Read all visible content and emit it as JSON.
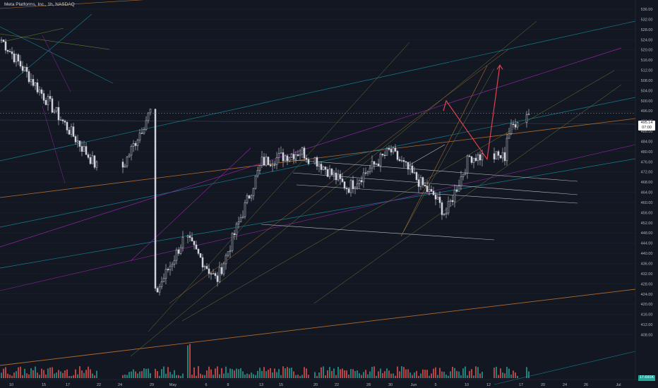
{
  "header": {
    "title": "Meta Platforms, Inc., 1h, NASDAQ"
  },
  "price_tag": {
    "price": "495.14",
    "countdown": "07:00"
  },
  "volume_tag": {
    "value": "17.691K"
  },
  "colors": {
    "background": "#131722",
    "grid": "#1f2433",
    "candle": "#d1d4dc",
    "vol_up": "#26a69a",
    "vol_down": "#ef5350",
    "forecast": "#e0424e",
    "teal": "#138a9a",
    "orange": "#c2732f",
    "purple": "#9c27b0",
    "olive": "#6b8b3a",
    "white_line": "#c9ccd4",
    "axis_text": "#b2b5be"
  },
  "chart_data": {
    "type": "candlestick",
    "title": "Meta Platforms, Inc., 1h, NASDAQ",
    "y_ticks": [
      "536.00",
      "532.00",
      "528.00",
      "524.00",
      "520.00",
      "516.00",
      "512.00",
      "508.00",
      "504.00",
      "500.00",
      "496.00",
      "492.00",
      "488.00",
      "484.00",
      "480.00",
      "476.00",
      "472.00",
      "468.00",
      "464.00",
      "460.00",
      "456.00",
      "452.00",
      "448.00",
      "444.00",
      "440.00",
      "436.00",
      "432.00",
      "428.00",
      "424.00",
      "420.00",
      "416.00",
      "412.00",
      "408.00"
    ],
    "x_ticks": [
      "10",
      "15",
      "17",
      "22",
      "24",
      "29",
      "May",
      "6",
      "8",
      "13",
      "15",
      "20",
      "22",
      "28",
      "30",
      "Jun",
      "5",
      "10",
      "12",
      "17",
      "20",
      "24",
      "26",
      "Jul"
    ],
    "ylim": [
      406,
      537
    ],
    "last_price": 495.14,
    "forecast_path": [
      500,
      477,
      514
    ],
    "price_segments": [
      {
        "start": 524,
        "end": 474,
        "n": 46
      },
      {
        "start": 474,
        "end": 496,
        "n": 14
      },
      {
        "start": 424,
        "end": 445,
        "n": 14
      },
      {
        "start": 445,
        "end": 430,
        "n": 14
      },
      {
        "start": 430,
        "end": 476,
        "n": 22
      },
      {
        "start": 476,
        "end": 480,
        "n": 18
      },
      {
        "start": 480,
        "end": 466,
        "n": 20
      },
      {
        "start": 466,
        "end": 480,
        "n": 20
      },
      {
        "start": 480,
        "end": 463,
        "n": 20
      },
      {
        "start": 463,
        "end": 456,
        "n": 6
      },
      {
        "start": 456,
        "end": 478,
        "n": 12
      },
      {
        "start": 478,
        "end": 478,
        "n": 12
      },
      {
        "start": 486,
        "end": 496,
        "n": 8
      }
    ]
  }
}
